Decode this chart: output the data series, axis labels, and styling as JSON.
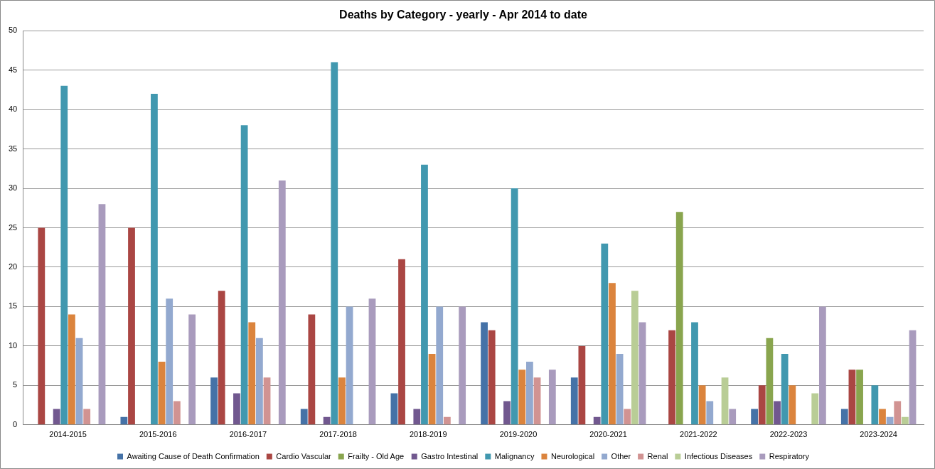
{
  "chart_data": {
    "type": "bar",
    "title": "Deaths by Category - yearly - Apr 2014 to date",
    "categories": [
      "2014-2015",
      "2015-2016",
      "2016-2017",
      "2017-2018",
      "2018-2019",
      "2019-2020",
      "2020-2021",
      "2021-2022",
      "2022-2023",
      "2023-2024"
    ],
    "series": [
      {
        "name": "Awaiting Cause of Death Confirmation",
        "color": "#4572a7",
        "values": [
          0,
          1,
          6,
          2,
          4,
          13,
          6,
          0,
          2,
          2
        ]
      },
      {
        "name": "Cardio Vascular",
        "color": "#aa4643",
        "values": [
          25,
          25,
          17,
          14,
          21,
          12,
          10,
          12,
          5,
          7
        ]
      },
      {
        "name": "Frailty - Old Age",
        "color": "#89a54e",
        "values": [
          0,
          0,
          0,
          0,
          0,
          0,
          0,
          27,
          11,
          7
        ]
      },
      {
        "name": "Gastro Intestinal",
        "color": "#71588f",
        "values": [
          2,
          0,
          4,
          1,
          2,
          3,
          1,
          0,
          3,
          0
        ]
      },
      {
        "name": "Malignancy",
        "color": "#4198af",
        "values": [
          43,
          42,
          38,
          46,
          33,
          30,
          23,
          13,
          9,
          5
        ]
      },
      {
        "name": "Neurological",
        "color": "#db843d",
        "values": [
          14,
          8,
          13,
          6,
          9,
          7,
          18,
          5,
          5,
          2
        ]
      },
      {
        "name": "Other",
        "color": "#93a9cf",
        "values": [
          11,
          16,
          11,
          15,
          15,
          8,
          9,
          3,
          0,
          1
        ]
      },
      {
        "name": "Renal",
        "color": "#d19392",
        "values": [
          2,
          3,
          6,
          0,
          1,
          6,
          2,
          0,
          0,
          3
        ]
      },
      {
        "name": "Infectious Diseases",
        "color": "#b9cd96",
        "values": [
          0,
          0,
          0,
          0,
          0,
          0,
          17,
          6,
          4,
          1
        ]
      },
      {
        "name": "Respiratory",
        "color": "#a99bbd",
        "values": [
          28,
          14,
          31,
          16,
          15,
          7,
          13,
          2,
          15,
          12
        ]
      }
    ],
    "ylim": [
      0,
      50
    ],
    "yticks": [
      0,
      5,
      10,
      15,
      20,
      25,
      30,
      35,
      40,
      45,
      50
    ],
    "grid": "y",
    "legend": "bottom"
  }
}
